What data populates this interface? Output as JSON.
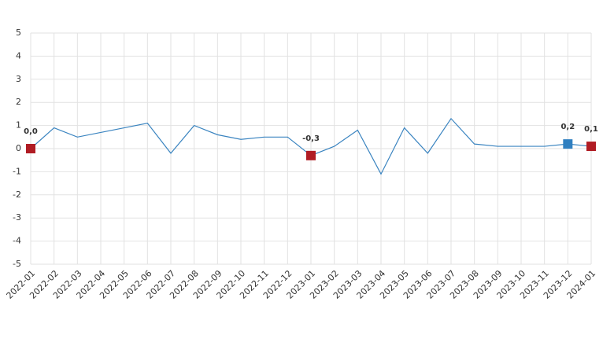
{
  "chart_data": {
    "type": "line",
    "categories": [
      "2022-01",
      "2022-02",
      "2022-03",
      "2022-04",
      "2022-05",
      "2022-06",
      "2022-07",
      "2022-08",
      "2022-09",
      "2022-10",
      "2022-11",
      "2022-12",
      "2023-01",
      "2023-02",
      "2023-03",
      "2023-04",
      "2023-05",
      "2023-06",
      "2023-07",
      "2023-08",
      "2023-09",
      "2023-10",
      "2023-11",
      "2023-12",
      "2024-01"
    ],
    "series": [
      {
        "color": "#3a84c0",
        "values": [
          0.0,
          0.9,
          0.5,
          0.7,
          0.9,
          1.1,
          -0.2,
          1.0,
          0.6,
          0.4,
          0.5,
          0.5,
          -0.3,
          0.1,
          0.8,
          -1.1,
          0.9,
          -0.2,
          1.3,
          0.2,
          0.1,
          0.1,
          0.1,
          0.2,
          0.1
        ],
        "value_labels": [
          "0,0",
          null,
          null,
          null,
          null,
          null,
          null,
          null,
          null,
          null,
          null,
          null,
          "-0,3",
          null,
          null,
          null,
          null,
          null,
          null,
          null,
          null,
          null,
          null,
          "0,2",
          "0,1"
        ],
        "marker_colors": [
          "#b01c24",
          null,
          null,
          null,
          null,
          null,
          null,
          null,
          null,
          null,
          null,
          null,
          "#b01c24",
          null,
          null,
          null,
          null,
          null,
          null,
          null,
          null,
          null,
          null,
          "#2f7fc0",
          "#b01c24"
        ]
      }
    ],
    "ylim": [
      -5,
      5
    ],
    "yticks": [
      -5,
      -4,
      -3,
      -2,
      -1,
      0,
      1,
      2,
      3,
      4,
      5
    ],
    "grid": true
  }
}
